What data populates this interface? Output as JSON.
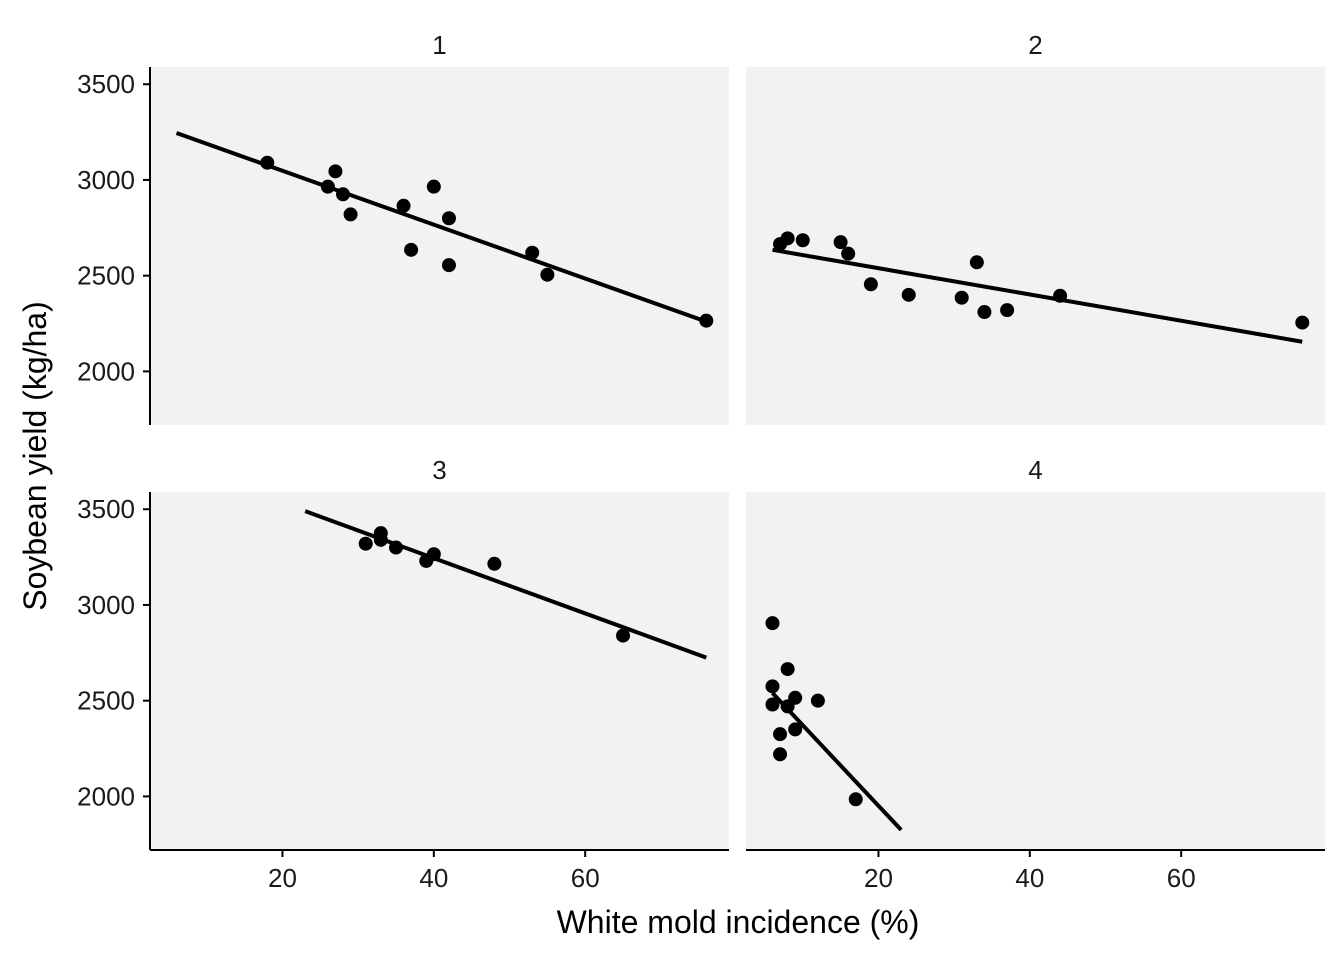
{
  "chart_data": {
    "type": "scatter",
    "xlabel": "White mold incidence (%)",
    "ylabel": "Soybean yield (kg/ha)",
    "xlim": [
      2.5,
      79
    ],
    "ylim": [
      1720,
      3590
    ],
    "xticks": [
      20,
      40,
      60
    ],
    "yticks": [
      2000,
      2500,
      3000,
      3500
    ],
    "panels": [
      {
        "label": "1",
        "points": [
          [
            18,
            3090
          ],
          [
            26,
            2965
          ],
          [
            27,
            3045
          ],
          [
            28,
            2925
          ],
          [
            29,
            2820
          ],
          [
            36,
            2865
          ],
          [
            37,
            2635
          ],
          [
            40,
            2965
          ],
          [
            42,
            2800
          ],
          [
            42,
            2555
          ],
          [
            53,
            2620
          ],
          [
            55,
            2505
          ],
          [
            76,
            2265
          ]
        ],
        "fit": [
          [
            6,
            3245
          ],
          [
            76,
            2260
          ]
        ]
      },
      {
        "label": "2",
        "points": [
          [
            7,
            2665
          ],
          [
            8,
            2695
          ],
          [
            10,
            2685
          ],
          [
            15,
            2675
          ],
          [
            16,
            2615
          ],
          [
            19,
            2455
          ],
          [
            24,
            2400
          ],
          [
            31,
            2385
          ],
          [
            33,
            2570
          ],
          [
            34,
            2310
          ],
          [
            37,
            2320
          ],
          [
            44,
            2395
          ],
          [
            76,
            2255
          ]
        ],
        "fit": [
          [
            6,
            2635
          ],
          [
            76,
            2155
          ]
        ]
      },
      {
        "label": "3",
        "points": [
          [
            31,
            3320
          ],
          [
            33,
            3375
          ],
          [
            33,
            3340
          ],
          [
            35,
            3300
          ],
          [
            39,
            3230
          ],
          [
            40,
            3265
          ],
          [
            48,
            3215
          ],
          [
            65,
            2840
          ]
        ],
        "fit": [
          [
            23,
            3490
          ],
          [
            76,
            2725
          ]
        ]
      },
      {
        "label": "4",
        "points": [
          [
            6,
            2905
          ],
          [
            6,
            2575
          ],
          [
            6,
            2480
          ],
          [
            7,
            2325
          ],
          [
            7,
            2220
          ],
          [
            8,
            2665
          ],
          [
            8,
            2470
          ],
          [
            9,
            2515
          ],
          [
            9,
            2350
          ],
          [
            12,
            2500
          ],
          [
            17,
            1985
          ]
        ],
        "fit": [
          [
            6,
            2540
          ],
          [
            23,
            1825
          ]
        ]
      }
    ]
  }
}
